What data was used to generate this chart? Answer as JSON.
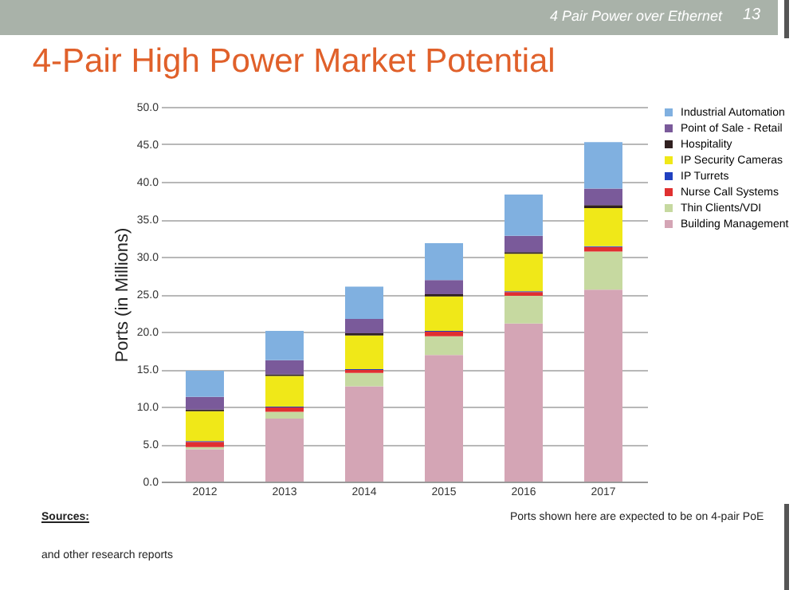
{
  "chart_data": {
    "type": "bar",
    "title": "4-Pair High Power Market Potential",
    "ylabel": "Ports (in Millions)",
    "categories": [
      "2012",
      "2013",
      "2014",
      "2015",
      "2016",
      "2017"
    ],
    "stacked": true,
    "series": [
      {
        "name": "Building Management",
        "color": "#d4a5b5",
        "values": [
          4.3,
          8.4,
          12.7,
          16.9,
          21.1,
          25.6
        ]
      },
      {
        "name": "Thin Clients/VDI",
        "color": "#c6d9a0",
        "values": [
          0.3,
          0.9,
          1.8,
          2.5,
          3.7,
          5.1
        ]
      },
      {
        "name": "Nurse Call Systems",
        "color": "#e03030",
        "values": [
          0.7,
          0.6,
          0.4,
          0.6,
          0.5,
          0.6
        ]
      },
      {
        "name": "IP Turrets",
        "color": "#2040c0",
        "values": [
          0.1,
          0.1,
          0.1,
          0.1,
          0.1,
          0.1
        ]
      },
      {
        "name": "IP Security Cameras",
        "color": "#f0e818",
        "values": [
          4.0,
          4.1,
          4.5,
          4.6,
          5.0,
          5.1
        ]
      },
      {
        "name": "Hospitality",
        "color": "#302020",
        "values": [
          0.2,
          0.2,
          0.3,
          0.3,
          0.2,
          0.4
        ]
      },
      {
        "name": "Point of Sale - Retail",
        "color": "#7a5a9a",
        "values": [
          1.7,
          1.9,
          1.9,
          1.9,
          2.2,
          2.2
        ]
      },
      {
        "name": "Industrial Automation",
        "color": "#80b0e0",
        "values": [
          3.5,
          3.9,
          4.3,
          4.9,
          5.5,
          6.2
        ]
      }
    ],
    "ylim": [
      0,
      50
    ],
    "yticks": [
      {
        "value": 0,
        "label": "0.0"
      },
      {
        "value": 5,
        "label": "5.0"
      },
      {
        "value": 10,
        "label": "10.0"
      },
      {
        "value": 15,
        "label": "15.0"
      },
      {
        "value": 20,
        "label": "20.0"
      },
      {
        "value": 25,
        "label": "25.0"
      },
      {
        "value": 30,
        "label": "30.0"
      },
      {
        "value": 35,
        "label": "35.0"
      },
      {
        "value": 40,
        "label": "40.0"
      },
      {
        "value": 45,
        "label": "45.0"
      },
      {
        "value": 50,
        "label": "50.0"
      }
    ],
    "grid": "y",
    "legend": "right",
    "annotations": [
      "4 Pair Power over Ethernet",
      "13",
      "Ports shown here are expected to be on 4-pair PoE",
      "Sources:",
      "and other research reports"
    ]
  }
}
